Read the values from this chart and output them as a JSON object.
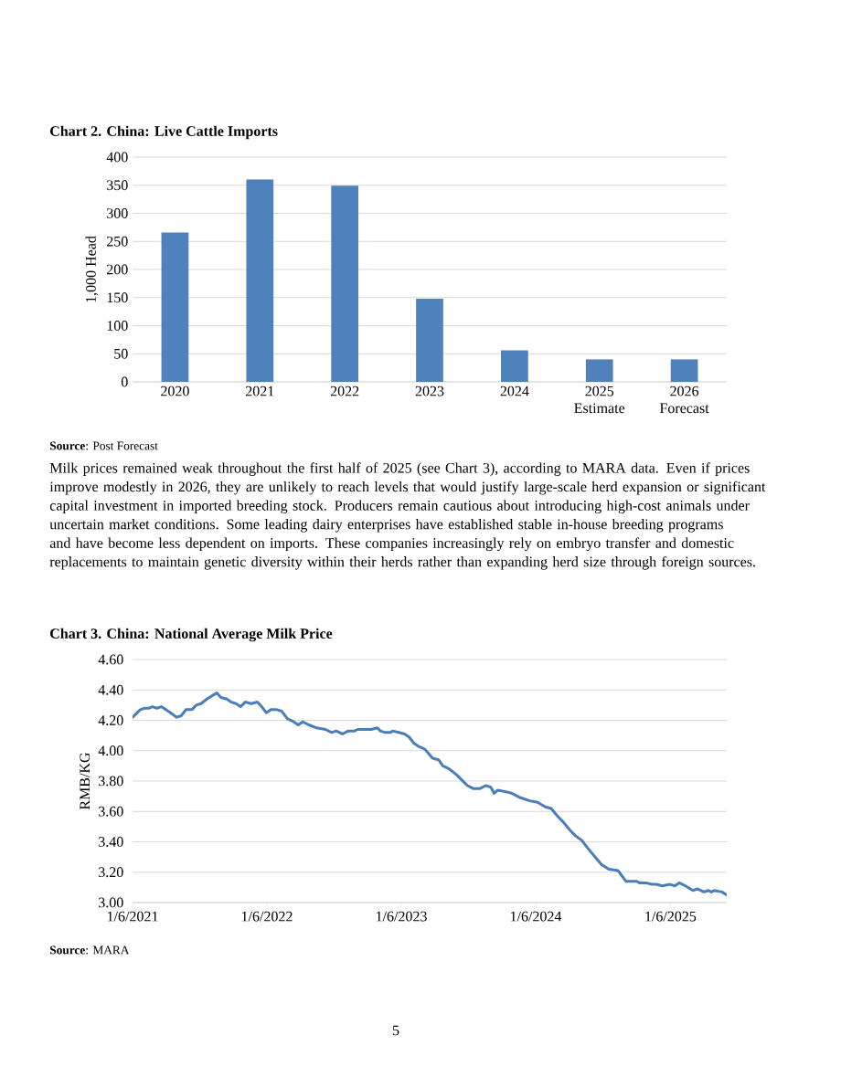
{
  "chart_data": [
    {
      "type": "bar",
      "title": "Chart 2. China: Live Cattle Imports",
      "ylabel": "1,000 Head",
      "categories": [
        "2020",
        "2021",
        "2022",
        "2023",
        "2024",
        "2025 Estimate",
        "2026 Forecast"
      ],
      "values": [
        266,
        360,
        349,
        148,
        56,
        40,
        40
      ],
      "color": "#4f81bd",
      "ylim": [
        0,
        400
      ],
      "yticks": [
        0,
        50,
        100,
        150,
        200,
        250,
        300,
        350,
        400
      ],
      "grid": "y",
      "annotations": [
        "**Source**: Post Forecast",
        "Milk prices remained weak throughout the first half of 2025 (see Chart 3), according to MARA data. Even if prices improve modestly in 2026, they are unlikely to reach levels that would justify large-scale herd expansion or significant capital investment in imported breeding stock. Producers remain cautious about introducing high-cost animals under uncertain market conditions. Some leading dairy enterprises have established stable in-house breeding programs and have become less dependent on imports. These companies increasingly rely on embryo transfer and domestic replacements to maintain genetic diversity within their herds rather than expanding herd size through foreign sources."
      ]
    },
    {
      "type": "line",
      "title": "Chart 3. China: National Average Milk Price",
      "ylabel": "RMB/KG",
      "x": [
        "2021-01-06",
        "2021-01-27",
        "2021-02-08",
        "2021-02-20",
        "2021-03-01",
        "2021-03-13",
        "2021-03-25",
        "2021-04-07",
        "2021-04-19",
        "2021-05-06",
        "2021-05-18",
        "2021-05-31",
        "2021-06-16",
        "2021-06-28",
        "2021-07-11",
        "2021-07-27",
        "2021-08-09",
        "2021-08-23",
        "2021-09-03",
        "2021-09-19",
        "2021-10-01",
        "2021-10-14",
        "2021-10-26",
        "2021-11-08",
        "2021-11-24",
        "2021-12-11",
        "2021-12-23",
        "2022-01-04",
        "2022-01-17",
        "2022-02-02",
        "2022-02-15",
        "2022-03-03",
        "2022-03-20",
        "2022-04-01",
        "2022-04-13",
        "2022-04-30",
        "2022-05-21",
        "2022-06-14",
        "2022-07-01",
        "2022-07-13",
        "2022-07-30",
        "2022-08-15",
        "2022-09-01",
        "2022-09-09",
        "2022-09-26",
        "2022-10-16",
        "2022-11-02",
        "2022-11-10",
        "2022-11-23",
        "2022-12-09",
        "2022-12-13",
        "2022-12-30",
        "2023-01-15",
        "2023-01-27",
        "2023-02-09",
        "2023-02-21",
        "2023-03-11",
        "2023-04-01",
        "2023-04-17",
        "2023-04-29",
        "2023-05-16",
        "2023-06-06",
        "2023-06-18",
        "2023-07-05",
        "2023-07-21",
        "2023-08-07",
        "2023-08-23",
        "2023-09-06",
        "2023-09-15",
        "2023-09-25",
        "2023-10-16",
        "2023-11-02",
        "2023-11-26",
        "2023-12-21",
        "2024-01-11",
        "2024-02-01",
        "2024-02-17",
        "2024-03-05",
        "2024-03-21",
        "2024-04-07",
        "2024-04-23",
        "2024-05-10",
        "2024-05-26",
        "2024-06-12",
        "2024-07-03",
        "2024-07-23",
        "2024-08-17",
        "2024-09-07",
        "2024-10-06",
        "2024-10-14",
        "2024-10-31",
        "2024-11-17",
        "2024-11-29",
        "2024-12-15",
        "2025-01-05",
        "2025-01-18",
        "2025-01-30",
        "2025-02-16",
        "2025-03-08",
        "2025-03-21",
        "2025-04-07",
        "2025-04-19",
        "2025-04-27",
        "2025-05-05",
        "2025-05-26",
        "2025-06-08"
      ],
      "values": [
        4.22,
        4.27,
        4.28,
        4.28,
        4.29,
        4.28,
        4.29,
        4.27,
        4.25,
        4.22,
        4.23,
        4.27,
        4.27,
        4.3,
        4.31,
        4.34,
        4.36,
        4.38,
        4.35,
        4.34,
        4.32,
        4.31,
        4.29,
        4.32,
        4.31,
        4.32,
        4.29,
        4.25,
        4.27,
        4.27,
        4.26,
        4.21,
        4.19,
        4.17,
        4.19,
        4.17,
        4.15,
        4.14,
        4.12,
        4.13,
        4.11,
        4.13,
        4.13,
        4.14,
        4.14,
        4.14,
        4.15,
        4.13,
        4.12,
        4.12,
        4.13,
        4.12,
        4.11,
        4.09,
        4.05,
        4.03,
        4.01,
        3.95,
        3.94,
        3.9,
        3.88,
        3.84,
        3.81,
        3.77,
        3.75,
        3.75,
        3.77,
        3.76,
        3.72,
        3.74,
        3.73,
        3.72,
        3.69,
        3.67,
        3.66,
        3.63,
        3.62,
        3.57,
        3.53,
        3.48,
        3.44,
        3.41,
        3.36,
        3.31,
        3.25,
        3.22,
        3.21,
        3.14,
        3.14,
        3.13,
        3.13,
        3.12,
        3.12,
        3.11,
        3.12,
        3.11,
        3.13,
        3.11,
        3.08,
        3.09,
        3.07,
        3.08,
        3.07,
        3.08,
        3.07,
        3.05
      ],
      "color": "#4a7ebb",
      "xlim": [
        "2021-01-06",
        "2025-06-08"
      ],
      "xticks": [
        {
          "value": "2021-01-06",
          "label": "1/6/2021"
        },
        {
          "value": "2022-01-06",
          "label": "1/6/2022"
        },
        {
          "value": "2023-01-06",
          "label": "1/6/2023"
        },
        {
          "value": "2024-01-06",
          "label": "1/6/2024"
        },
        {
          "value": "2025-01-06",
          "label": "1/6/2025"
        }
      ],
      "ylim": [
        3.0,
        4.6
      ],
      "yticks": [
        {
          "value": 3.0,
          "label": "3.00"
        },
        {
          "value": 3.2,
          "label": "3.20"
        },
        {
          "value": 3.4,
          "label": "3.40"
        },
        {
          "value": 3.6,
          "label": "3.60"
        },
        {
          "value": 3.8,
          "label": "3.80"
        },
        {
          "value": 4.0,
          "label": "4.00"
        },
        {
          "value": 4.2,
          "label": "4.20"
        },
        {
          "value": 4.4,
          "label": "4.40"
        },
        {
          "value": 4.6,
          "label": "4.60"
        }
      ],
      "grid": "y",
      "annotations": [
        "**Source**: MARA",
        "5"
      ]
    }
  ]
}
